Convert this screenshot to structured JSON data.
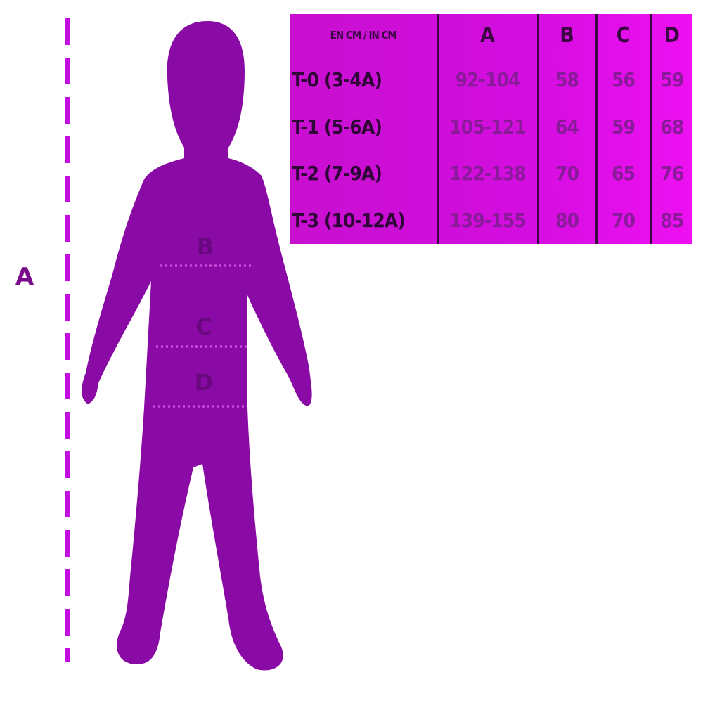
{
  "diagram": {
    "height_label": "A",
    "body_labels": [
      "B",
      "C",
      "D"
    ],
    "colors": {
      "silhouette": "#8a0aa6",
      "dashed_line": "#c20ee0",
      "table_bg": "#d40ee0",
      "text_dark": "#3a0742"
    }
  },
  "table": {
    "header": [
      "EN CM / IN CM",
      "A",
      "B",
      "C",
      "D"
    ],
    "rows": [
      [
        "T-0 (3-4A)",
        "92-104",
        "58",
        "56",
        "59"
      ],
      [
        "T-1 (5-6A)",
        "105-121",
        "64",
        "59",
        "68"
      ],
      [
        "T-2 (7-9A)",
        "122-138",
        "70",
        "65",
        "76"
      ],
      [
        "T-3 (10-12A)",
        "139-155",
        "80",
        "70",
        "85"
      ]
    ]
  }
}
